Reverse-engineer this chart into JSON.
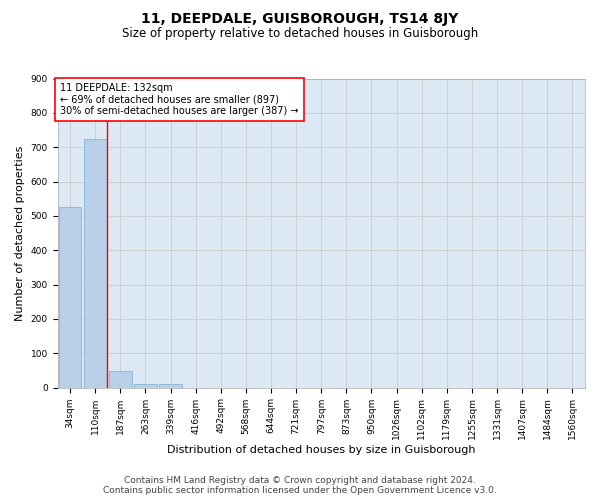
{
  "title": "11, DEEPDALE, GUISBOROUGH, TS14 8JY",
  "subtitle": "Size of property relative to detached houses in Guisborough",
  "xlabel": "Distribution of detached houses by size in Guisborough",
  "ylabel": "Number of detached properties",
  "categories": [
    "34sqm",
    "110sqm",
    "187sqm",
    "263sqm",
    "339sqm",
    "416sqm",
    "492sqm",
    "568sqm",
    "644sqm",
    "721sqm",
    "797sqm",
    "873sqm",
    "950sqm",
    "1026sqm",
    "1102sqm",
    "1179sqm",
    "1255sqm",
    "1331sqm",
    "1407sqm",
    "1484sqm",
    "1560sqm"
  ],
  "values": [
    527,
    724,
    47,
    11,
    10,
    0,
    0,
    0,
    0,
    0,
    0,
    0,
    0,
    0,
    0,
    0,
    0,
    0,
    0,
    0,
    0
  ],
  "bar_color": "#b8d0e8",
  "bar_edge_color": "#7aafd4",
  "vline_x": 1.45,
  "vline_color": "red",
  "annotation_text": "11 DEEPDALE: 132sqm\n← 69% of detached houses are smaller (897)\n30% of semi-detached houses are larger (387) →",
  "annotation_box_color": "white",
  "annotation_box_edge_color": "red",
  "ylim": [
    0,
    900
  ],
  "yticks": [
    0,
    100,
    200,
    300,
    400,
    500,
    600,
    700,
    800,
    900
  ],
  "grid_color": "#cccccc",
  "plot_bg_color": "#dce9f5",
  "footer_line1": "Contains HM Land Registry data © Crown copyright and database right 2024.",
  "footer_line2": "Contains public sector information licensed under the Open Government Licence v3.0.",
  "title_fontsize": 10,
  "subtitle_fontsize": 8.5,
  "xlabel_fontsize": 8,
  "ylabel_fontsize": 8,
  "tick_fontsize": 6.5,
  "annotation_fontsize": 7,
  "footer_fontsize": 6.5
}
